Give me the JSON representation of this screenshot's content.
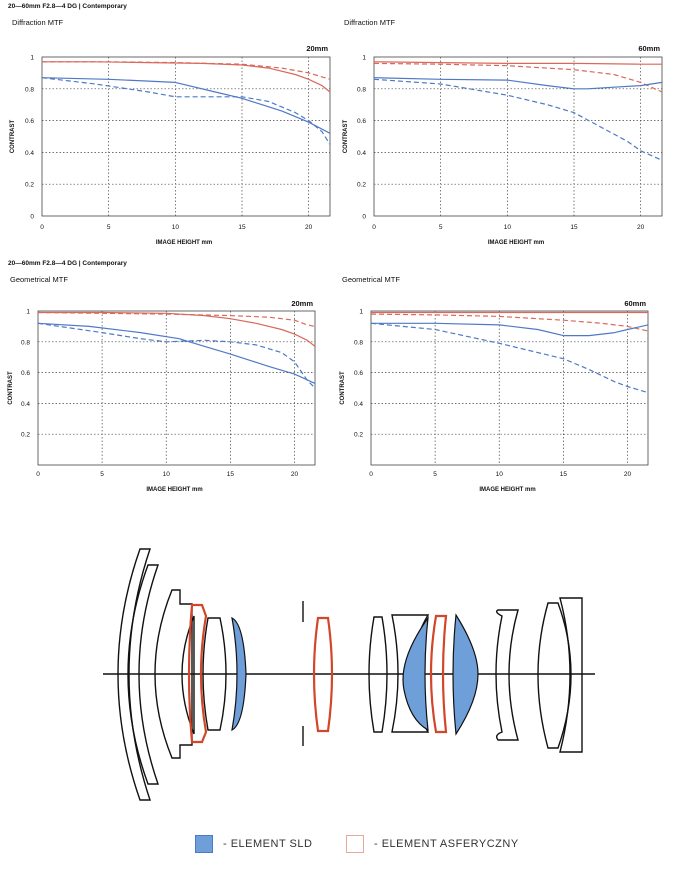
{
  "header_top": "20—60mm F2.8—4 DG | Contemporary",
  "header_mid": "20—60mm F2.8—4 DG | Contemporary",
  "colors": {
    "sagittal": "#d9695a",
    "meridional": "#4f79c6",
    "grid": "#333333",
    "sld": "#6f9fd8",
    "asph": "#d2462a"
  },
  "chart_data": [
    {
      "type": "line",
      "title": "Diffraction MTF",
      "focal_label": "20mm",
      "xlabel": "IMAGE HEIGHT  mm",
      "ylabel": "CONTRAST",
      "xlim": [
        0,
        21.6
      ],
      "ylim": [
        0,
        1
      ],
      "xticks": [
        0,
        5,
        10,
        15,
        20
      ],
      "yticks": [
        0,
        0.2,
        0.4,
        0.6,
        0.8,
        1
      ],
      "ytick_labels": [
        "0",
        "0.2",
        "0.4",
        "0.6",
        "0.8",
        "1"
      ],
      "series": [
        {
          "color": "red",
          "dash": false,
          "x": [
            0,
            4,
            8,
            12,
            15,
            17,
            19,
            20,
            21,
            21.6
          ],
          "values": [
            0.97,
            0.97,
            0.965,
            0.96,
            0.95,
            0.93,
            0.89,
            0.86,
            0.82,
            0.78
          ]
        },
        {
          "color": "red",
          "dash": true,
          "x": [
            0,
            5,
            10,
            15,
            18,
            20,
            21.6
          ],
          "values": [
            0.97,
            0.97,
            0.965,
            0.955,
            0.93,
            0.9,
            0.86
          ]
        },
        {
          "color": "blue",
          "dash": false,
          "x": [
            0,
            5,
            10,
            13,
            15,
            18,
            20,
            21.6
          ],
          "values": [
            0.87,
            0.86,
            0.84,
            0.78,
            0.74,
            0.66,
            0.59,
            0.52
          ]
        },
        {
          "color": "blue",
          "dash": true,
          "x": [
            0,
            4,
            8,
            10,
            12,
            15,
            17,
            19,
            20,
            21,
            21.6
          ],
          "values": [
            0.87,
            0.83,
            0.78,
            0.75,
            0.75,
            0.75,
            0.72,
            0.65,
            0.6,
            0.53,
            0.45
          ]
        }
      ]
    },
    {
      "type": "line",
      "title": "Diffraction MTF",
      "focal_label": "60mm",
      "xlabel": "IMAGE HEIGHT  mm",
      "ylabel": "CONTRAST",
      "xlim": [
        0,
        21.6
      ],
      "ylim": [
        0,
        1
      ],
      "xticks": [
        0,
        5,
        10,
        15,
        20
      ],
      "yticks": [
        0,
        0.2,
        0.4,
        0.6,
        0.8,
        1
      ],
      "ytick_labels": [
        "0",
        "0.2",
        "0.4",
        "0.6",
        "0.8",
        "1"
      ],
      "series": [
        {
          "color": "red",
          "dash": false,
          "x": [
            0,
            5,
            10,
            15,
            20,
            21.6
          ],
          "values": [
            0.97,
            0.965,
            0.96,
            0.96,
            0.955,
            0.955
          ]
        },
        {
          "color": "red",
          "dash": true,
          "x": [
            0,
            5,
            10,
            15,
            18,
            20,
            21.6
          ],
          "values": [
            0.96,
            0.955,
            0.945,
            0.92,
            0.89,
            0.84,
            0.78
          ]
        },
        {
          "color": "blue",
          "dash": false,
          "x": [
            0,
            5,
            10,
            13,
            15,
            16,
            18,
            20,
            21.6
          ],
          "values": [
            0.87,
            0.86,
            0.855,
            0.82,
            0.8,
            0.8,
            0.81,
            0.82,
            0.84
          ]
        },
        {
          "color": "blue",
          "dash": true,
          "x": [
            0,
            5,
            10,
            13,
            15,
            17,
            19,
            20,
            21.6
          ],
          "values": [
            0.86,
            0.83,
            0.76,
            0.7,
            0.65,
            0.56,
            0.47,
            0.41,
            0.35
          ]
        }
      ]
    },
    {
      "type": "line",
      "title": "Geometrical MTF",
      "focal_label": "20mm",
      "xlabel": "IMAGE HEIGHT  mm",
      "ylabel": "CONTRAST",
      "xlim": [
        0,
        21.6
      ],
      "ylim": [
        0,
        1
      ],
      "xticks": [
        0,
        5,
        10,
        15,
        20
      ],
      "yticks": [
        0,
        0.2,
        0.4,
        0.6,
        0.8,
        1
      ],
      "ytick_labels": [
        "",
        "0.2",
        "0.4",
        "0.6",
        "0.8",
        "1"
      ],
      "series": [
        {
          "color": "red",
          "dash": false,
          "x": [
            0,
            5,
            10,
            13,
            15,
            17,
            19,
            20,
            21,
            21.6
          ],
          "values": [
            0.99,
            0.99,
            0.985,
            0.97,
            0.95,
            0.92,
            0.88,
            0.85,
            0.81,
            0.77
          ]
        },
        {
          "color": "red",
          "dash": true,
          "x": [
            0,
            5,
            10,
            15,
            18,
            20,
            21,
            21.6
          ],
          "values": [
            0.99,
            0.985,
            0.98,
            0.97,
            0.96,
            0.94,
            0.91,
            0.9
          ]
        },
        {
          "color": "blue",
          "dash": false,
          "x": [
            0,
            4,
            8,
            11,
            13,
            15,
            18,
            20,
            21.6
          ],
          "values": [
            0.92,
            0.9,
            0.86,
            0.82,
            0.77,
            0.72,
            0.64,
            0.59,
            0.53
          ]
        },
        {
          "color": "blue",
          "dash": true,
          "x": [
            0,
            5,
            8,
            10,
            13,
            15,
            17,
            19,
            20,
            21,
            21.6
          ],
          "values": [
            0.92,
            0.86,
            0.82,
            0.8,
            0.81,
            0.8,
            0.78,
            0.73,
            0.67,
            0.55,
            0.5
          ]
        }
      ]
    },
    {
      "type": "line",
      "title": "Geometrical MTF",
      "focal_label": "60mm",
      "xlabel": "IMAGE HEIGHT  mm",
      "ylabel": "CONTRAST",
      "xlim": [
        0,
        21.6
      ],
      "ylim": [
        0,
        1
      ],
      "xticks": [
        0,
        5,
        10,
        15,
        20
      ],
      "yticks": [
        0,
        0.2,
        0.4,
        0.6,
        0.8,
        1
      ],
      "ytick_labels": [
        "",
        "0.2",
        "0.4",
        "0.6",
        "0.8",
        "1"
      ],
      "series": [
        {
          "color": "red",
          "dash": false,
          "x": [
            0,
            5,
            10,
            15,
            20,
            21.6
          ],
          "values": [
            0.99,
            0.99,
            0.99,
            0.99,
            0.99,
            0.99
          ]
        },
        {
          "color": "red",
          "dash": true,
          "x": [
            0,
            5,
            10,
            15,
            18,
            20,
            21.6
          ],
          "values": [
            0.98,
            0.975,
            0.965,
            0.94,
            0.92,
            0.9,
            0.87
          ]
        },
        {
          "color": "blue",
          "dash": false,
          "x": [
            0,
            5,
            10,
            13,
            15,
            17,
            19,
            20,
            21.6
          ],
          "values": [
            0.92,
            0.92,
            0.91,
            0.88,
            0.84,
            0.84,
            0.86,
            0.88,
            0.91
          ]
        },
        {
          "color": "blue",
          "dash": true,
          "x": [
            0,
            5,
            10,
            12,
            15,
            17,
            19,
            20,
            21.6
          ],
          "values": [
            0.92,
            0.88,
            0.79,
            0.75,
            0.69,
            0.62,
            0.54,
            0.51,
            0.47
          ]
        }
      ]
    }
  ],
  "legend": [
    {
      "key": "sld",
      "label": "- ELEMENT SLD"
    },
    {
      "key": "asph",
      "label": "- ELEMENT ASFERYCZNY"
    }
  ]
}
